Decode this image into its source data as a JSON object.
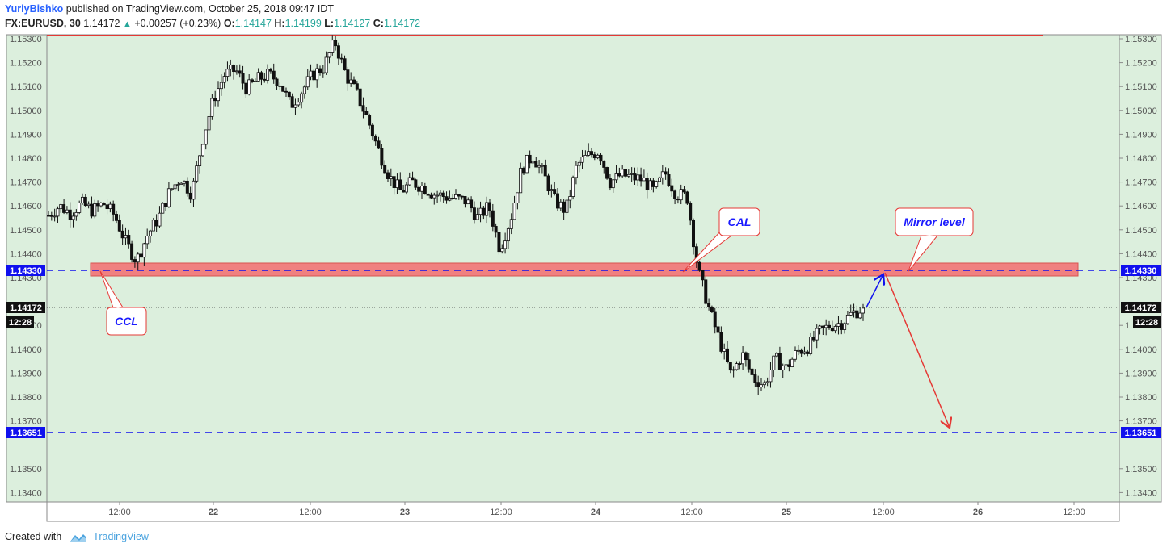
{
  "header": {
    "author": "YuriyBishko",
    "published_text": "published on TradingView.com, October 25, 2018 09:47 IDT",
    "symbol": "FX:EURUSD, 30",
    "last": "1.14172",
    "change": "+0.00257 (+0.23%)",
    "open_label": "O:",
    "open": "1.14147",
    "high_label": "H:",
    "high": "1.14199",
    "low_label": "L:",
    "low": "1.14127",
    "close_label": "C:",
    "close": "1.14172"
  },
  "footer": {
    "created_with": "Created with",
    "brand": "TradingView"
  },
  "colors": {
    "background": "#dcefdd",
    "zone_fill": "#f08080",
    "zone_border": "#d9534f",
    "blue_line": "#1010ee",
    "red_line": "#e53935",
    "callout_border": "#e53935",
    "callout_text": "#1a1aff"
  },
  "chart_data": {
    "type": "candlestick",
    "symbol": "FX:EURUSD",
    "interval": "30",
    "ylim": [
      1.1335,
      1.153
    ],
    "y_ticks": [
      "1.15300",
      "1.15200",
      "1.15100",
      "1.15000",
      "1.14900",
      "1.14800",
      "1.14700",
      "1.14600",
      "1.14500",
      "1.14400",
      "1.14300",
      "1.14100",
      "1.14000",
      "1.13900",
      "1.13800",
      "1.13700",
      "1.13500",
      "1.13400"
    ],
    "x_ticks": [
      "12:00",
      "22",
      "12:00",
      "23",
      "12:00",
      "24",
      "12:00",
      "25",
      "12:00",
      "26",
      "12:00"
    ],
    "price_labels": [
      {
        "value": 1.1433,
        "text": "1.14330",
        "style": "blue"
      },
      {
        "value": 1.14172,
        "text": "1.14172",
        "style": "dark"
      },
      {
        "value": 1.13651,
        "text": "1.13651",
        "style": "blue"
      }
    ],
    "time_badge": "12:28",
    "resistance_line": 1.153,
    "zone": [
      1.1431,
      1.1436
    ],
    "mirror_level": 1.1433,
    "target_level": 1.13651,
    "current_price": 1.14172,
    "annotations": [
      "CCL",
      "CAL",
      "Mirror level"
    ],
    "path": [
      1.1456,
      1.146,
      1.1457,
      1.1461,
      1.1458,
      1.1461,
      1.1456,
      1.1445,
      1.1437,
      1.1448,
      1.1455,
      1.1466,
      1.1472,
      1.1465,
      1.1488,
      1.1505,
      1.1515,
      1.1517,
      1.1509,
      1.1513,
      1.1515,
      1.1512,
      1.1502,
      1.1508,
      1.1515,
      1.1518,
      1.1529,
      1.1515,
      1.1507,
      1.1496,
      1.1483,
      1.1472,
      1.1466,
      1.147,
      1.1468,
      1.1465,
      1.1464,
      1.1463,
      1.1462,
      1.1455,
      1.146,
      1.1442,
      1.1455,
      1.1476,
      1.1481,
      1.1473,
      1.1462,
      1.1458,
      1.1477,
      1.1481,
      1.1483,
      1.147,
      1.1473,
      1.1472,
      1.1471,
      1.1466,
      1.1474,
      1.1465,
      1.1464,
      1.1433,
      1.1417,
      1.1403,
      1.1389,
      1.1398,
      1.1388,
      1.1385,
      1.1396,
      1.1392,
      1.1399,
      1.1401,
      1.1407,
      1.141,
      1.1411,
      1.1415,
      1.14172
    ]
  }
}
